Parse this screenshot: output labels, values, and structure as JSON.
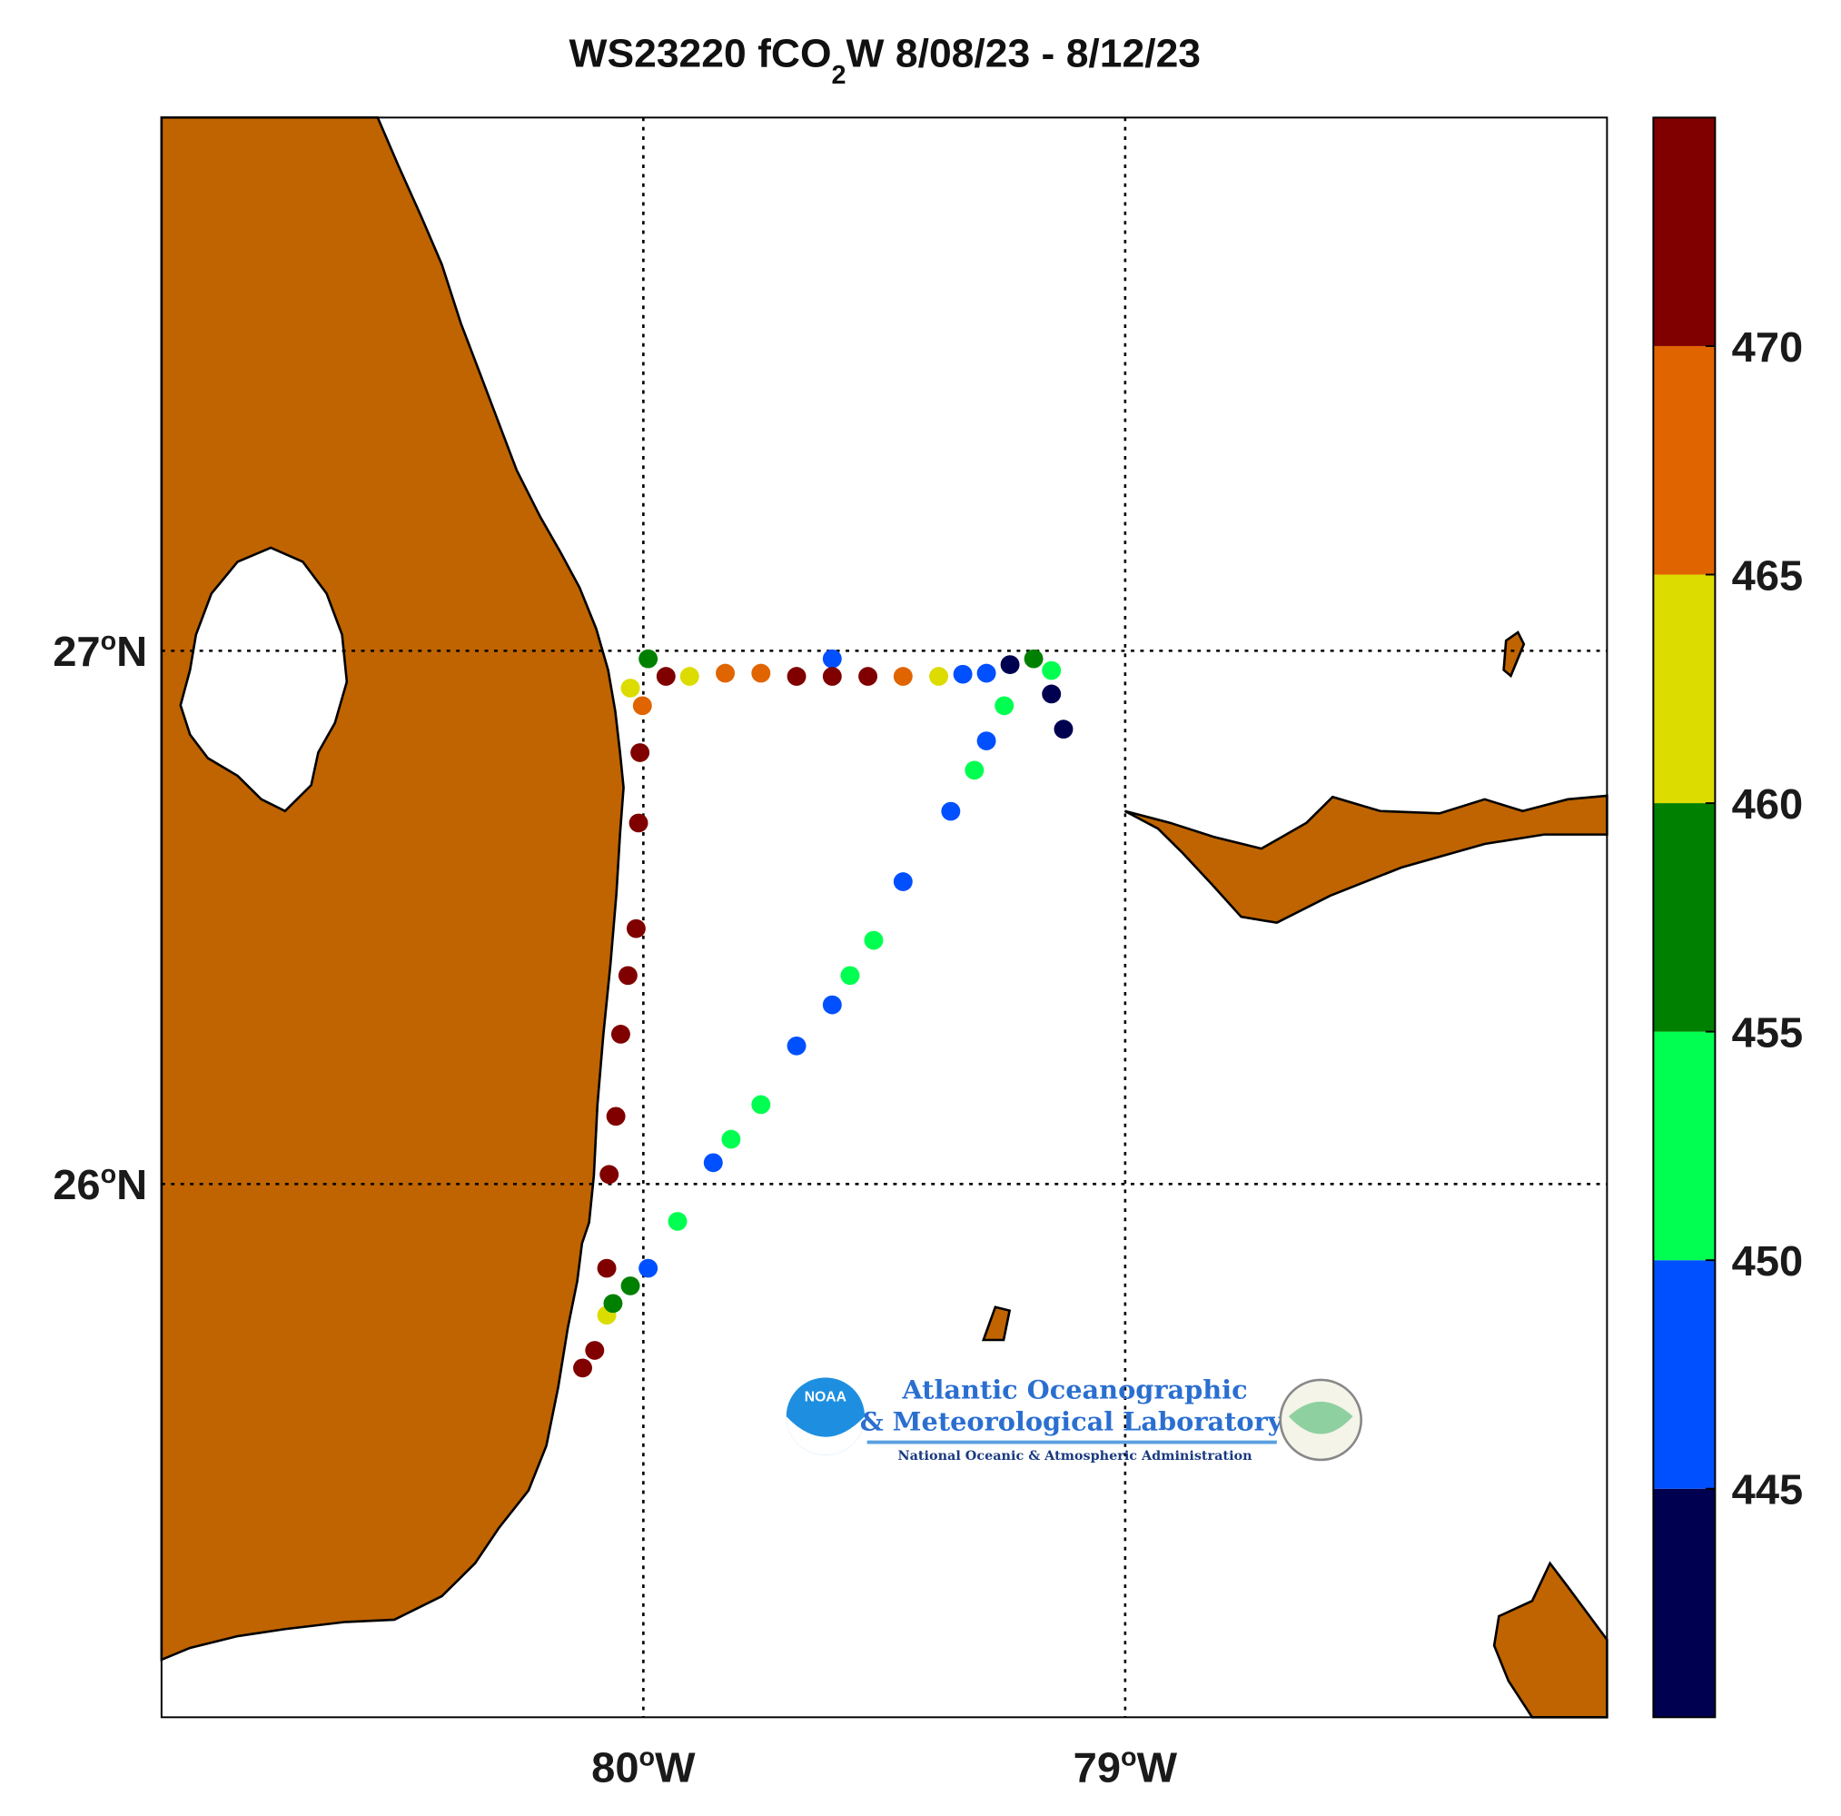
{
  "chart_data": {
    "type": "scatter",
    "title": {
      "text": "WS23220 fCO",
      "sub": "2",
      "rest": "W 8/08/23 - 8/12/23"
    },
    "xlim": [
      -81,
      -78
    ],
    "ylim": [
      25,
      28
    ],
    "xticks": [
      {
        "value": -80,
        "label": "80",
        "sup": "o",
        "suffix": "W"
      },
      {
        "value": -79,
        "label": "79",
        "sup": "o",
        "suffix": "W"
      }
    ],
    "yticks": [
      {
        "value": 26,
        "label": "26",
        "sup": "o",
        "suffix": "N"
      },
      {
        "value": 27,
        "label": "27",
        "sup": "o",
        "suffix": "N"
      }
    ],
    "grid": true,
    "land_color": "#bf6400",
    "x": [
      -80.126,
      -80.101,
      -80.076,
      -80.076,
      -80.071,
      -80.057,
      -80.047,
      -80.032,
      -80.015,
      -80.01,
      -80.007,
      -80.002,
      -80.027,
      -79.99,
      -79.953,
      -79.904,
      -79.83,
      -79.756,
      -79.682,
      -79.608,
      -79.608,
      -79.534,
      -79.461,
      -79.387,
      -79.337,
      -79.288,
      -79.239,
      -79.19,
      -79.153,
      -79.153,
      -79.128,
      -79.251,
      -79.288,
      -79.313,
      -79.362,
      -79.461,
      -79.522,
      -79.571,
      -79.608,
      -79.682,
      -79.756,
      -79.818,
      -79.855,
      -79.929,
      -79.99,
      -80.027,
      -80.063
    ],
    "y": [
      25.655,
      25.688,
      25.754,
      25.842,
      26.018,
      26.127,
      26.281,
      26.391,
      26.479,
      26.677,
      26.809,
      26.897,
      26.93,
      26.985,
      26.952,
      26.952,
      26.958,
      26.958,
      26.952,
      26.985,
      26.952,
      26.952,
      26.952,
      26.952,
      26.956,
      26.958,
      26.974,
      26.985,
      26.963,
      26.919,
      26.853,
      26.897,
      26.831,
      26.776,
      26.699,
      26.567,
      26.457,
      26.391,
      26.336,
      26.259,
      26.149,
      26.084,
      26.04,
      25.93,
      25.842,
      25.809,
      25.776
    ],
    "values": [
      472,
      472,
      462,
      472,
      472,
      472,
      472,
      472,
      472,
      472,
      472,
      467,
      462,
      457,
      472,
      462,
      467,
      467,
      472,
      447,
      472,
      472,
      467,
      462,
      447,
      447,
      442,
      457,
      452,
      442,
      442,
      452,
      447,
      452,
      447,
      447,
      452,
      452,
      447,
      447,
      452,
      452,
      447,
      452,
      447,
      457,
      457
    ],
    "colorbar": {
      "lim": [
        440,
        475
      ],
      "ticks": [
        445,
        450,
        455,
        460,
        465,
        470
      ],
      "colors": [
        "#000050",
        "#0050ff",
        "#00ff50",
        "#008000",
        "#dcdc00",
        "#e06400",
        "#800000"
      ]
    },
    "logo": {
      "badge": "NOAA",
      "line1": "Atlantic Oceanographic",
      "line2": "& Meteorological Laboratory",
      "line3": "National Oceanic & Atmospheric Administration"
    }
  }
}
